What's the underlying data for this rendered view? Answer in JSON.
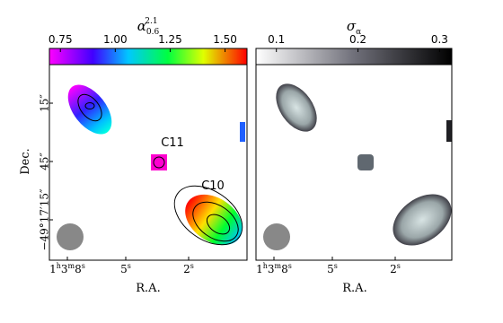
{
  "panels": [
    {
      "colorbar": {
        "label": {
          "symbol": "α",
          "sub": "0.6",
          "sup": "2.1"
        },
        "limits": [
          0.7,
          1.6
        ],
        "ticks": [
          0.75,
          {
            "value": 1,
            "label": "1.00"
          },
          1.25,
          {
            "value": 1.5,
            "label": "1.50"
          }
        ]
      },
      "x_ticks": [
        [
          [
            "1",
            "h"
          ],
          [
            "3",
            "m"
          ],
          [
            "8",
            "s"
          ]
        ],
        [
          [
            "5",
            "s"
          ]
        ],
        [
          [
            "2",
            "s"
          ]
        ]
      ],
      "y_ticks": [
        "15″",
        "45″",
        "−49°17′15″"
      ],
      "x_label": "R.A.",
      "y_label": "Dec.",
      "annotations": [
        "C11",
        "C10"
      ]
    },
    {
      "colorbar": {
        "label": {
          "symbol": "σ",
          "sub": "α"
        },
        "limits": [
          0.075,
          0.315
        ],
        "ticks": [
          0.1,
          0.2,
          0.3
        ]
      },
      "x_ticks": [
        [
          [
            "1",
            "h"
          ],
          [
            "3",
            "m"
          ],
          [
            "8",
            "s"
          ]
        ],
        [
          [
            "5",
            "s"
          ]
        ],
        [
          [
            "2",
            "s"
          ]
        ]
      ],
      "x_label": "R.A."
    }
  ]
}
